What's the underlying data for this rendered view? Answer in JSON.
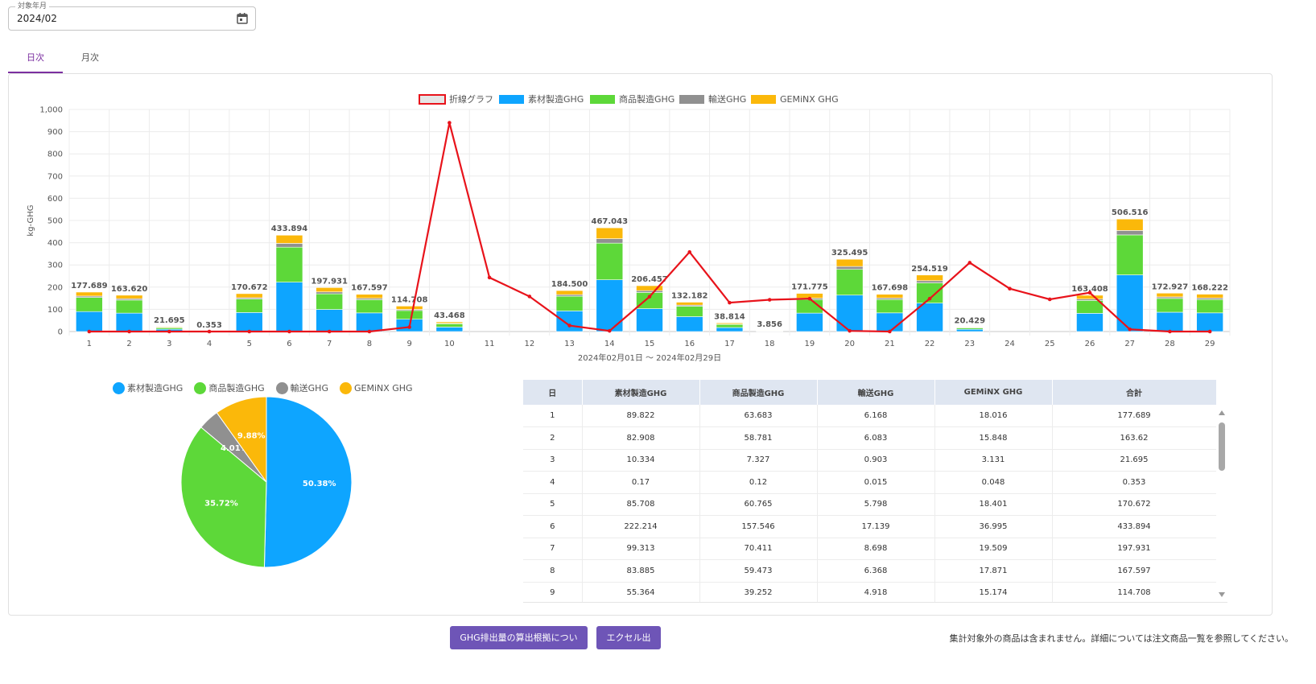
{
  "filter": {
    "label": "対象年月",
    "value": "2024/02"
  },
  "tabs": [
    {
      "label": "日次"
    },
    {
      "label": "月次"
    }
  ],
  "colors": {
    "material": "#0ea5ff",
    "product": "#5dd839",
    "transport": "#909090",
    "geminx": "#fbb80a",
    "line": "#e8131b",
    "accent": "#7b2fa0",
    "button": "#6e55b7",
    "tableHeader": "#dfe6f1"
  },
  "chart_data": [
    {
      "type": "bar",
      "stacked": true,
      "legend": [
        "折線グラフ",
        "素材製造GHG",
        "商品製造GHG",
        "輸送GHG",
        "GEMiNX GHG"
      ],
      "legend_position": "top-center",
      "ylabel": "kg-GHG",
      "xlabel": "2024年02月01日 〜 2024年02月29日",
      "ylim": [
        0,
        1000
      ],
      "yticks": [
        "0",
        "100",
        "200",
        "300",
        "400",
        "500",
        "600",
        "700",
        "800",
        "900",
        "1,000"
      ],
      "grid": true,
      "categories": [
        "1",
        "2",
        "3",
        "4",
        "5",
        "6",
        "7",
        "8",
        "9",
        "10",
        "11",
        "12",
        "13",
        "14",
        "15",
        "16",
        "17",
        "18",
        "19",
        "20",
        "21",
        "22",
        "23",
        "24",
        "25",
        "26",
        "27",
        "28",
        "29"
      ],
      "series": [
        {
          "name": "素材製造GHG",
          "values": [
            89.822,
            82.908,
            10.334,
            0.17,
            85.708,
            222.214,
            99.313,
            83.885,
            55.364,
            20,
            0,
            0,
            93,
            233,
            103,
            67,
            18,
            1.8,
            83,
            164,
            84,
            128,
            10,
            0,
            0,
            82,
            255,
            87,
            84
          ]
        },
        {
          "name": "商品製造GHG",
          "values": [
            63.683,
            58.781,
            7.327,
            0.12,
            60.765,
            157.546,
            70.411,
            59.473,
            39.252,
            15,
            0,
            0,
            66,
            165,
            73,
            47,
            14,
            1.4,
            61,
            116,
            60,
            91,
            7,
            0,
            0,
            58,
            180,
            62,
            60
          ]
        },
        {
          "name": "輸送GHG",
          "values": [
            6.168,
            6.083,
            0.903,
            0.015,
            5.798,
            17.139,
            8.698,
            6.368,
            4.918,
            2,
            0,
            0,
            7,
            20,
            8,
            5,
            1.5,
            0.2,
            6,
            13,
            7,
            10,
            1,
            0,
            0,
            6,
            20,
            7,
            7
          ]
        },
        {
          "name": "GEMiNX GHG",
          "values": [
            18.016,
            15.848,
            3.131,
            0.048,
            18.401,
            36.995,
            19.509,
            17.871,
            15.174,
            6.468,
            0,
            0,
            18.5,
            49.043,
            22.457,
            13.182,
            5.314,
            0.456,
            21.775,
            32.495,
            16.698,
            25.519,
            2.429,
            0,
            0,
            17.408,
            51.516,
            16.927,
            17.222
          ]
        },
        {
          "name": "折線グラフ",
          "type": "line",
          "values": [
            0,
            0,
            0,
            0,
            0,
            0,
            0,
            0,
            20,
            940,
            243,
            158,
            27,
            3,
            157,
            358,
            130,
            143,
            148,
            3,
            0,
            148,
            310,
            193,
            145,
            175,
            10,
            0,
            0
          ]
        }
      ],
      "totals": [
        "177.689",
        "163.620",
        "21.695",
        "0.353",
        "170.672",
        "433.894",
        "197.931",
        "167.597",
        "114.708",
        "43.468",
        "",
        "",
        "184.500",
        "467.043",
        "206.457",
        "132.182",
        "38.814",
        "3.856",
        "171.775",
        "325.495",
        "167.698",
        "254.519",
        "20.429",
        "",
        "",
        "163.408",
        "506.516",
        "172.927",
        "168.222"
      ]
    },
    {
      "type": "pie",
      "legend": [
        "素材製造GHG",
        "商品製造GHG",
        "輸送GHG",
        "GEMiNX GHG"
      ],
      "legend_position": "top",
      "labels": [
        "素材製造GHG",
        "商品製造GHG",
        "輸送GHG",
        "GEMiNX GHG"
      ],
      "values": [
        50.38,
        35.72,
        4.01,
        9.88
      ],
      "value_labels": [
        "50.38%",
        "35.72%",
        "4.01%",
        "9.88%"
      ]
    }
  ],
  "table": {
    "headers": [
      "日",
      "素材製造GHG",
      "商品製造GHG",
      "輸送GHG",
      "GEMiNX GHG",
      "合計"
    ],
    "rows": [
      [
        "1",
        "89.822",
        "63.683",
        "6.168",
        "18.016",
        "177.689"
      ],
      [
        "2",
        "82.908",
        "58.781",
        "6.083",
        "15.848",
        "163.62"
      ],
      [
        "3",
        "10.334",
        "7.327",
        "0.903",
        "3.131",
        "21.695"
      ],
      [
        "4",
        "0.17",
        "0.12",
        "0.015",
        "0.048",
        "0.353"
      ],
      [
        "5",
        "85.708",
        "60.765",
        "5.798",
        "18.401",
        "170.672"
      ],
      [
        "6",
        "222.214",
        "157.546",
        "17.139",
        "36.995",
        "433.894"
      ],
      [
        "7",
        "99.313",
        "70.411",
        "8.698",
        "19.509",
        "197.931"
      ],
      [
        "8",
        "83.885",
        "59.473",
        "6.368",
        "17.871",
        "167.597"
      ],
      [
        "9",
        "55.364",
        "39.252",
        "4.918",
        "15.174",
        "114.708"
      ]
    ]
  },
  "buttons": {
    "basis": "GHG排出量の算出根拠について",
    "excel": "エクセル出力"
  },
  "note": "集計対象外の商品は含まれません。詳細については注文商品一覧を参照してください。"
}
